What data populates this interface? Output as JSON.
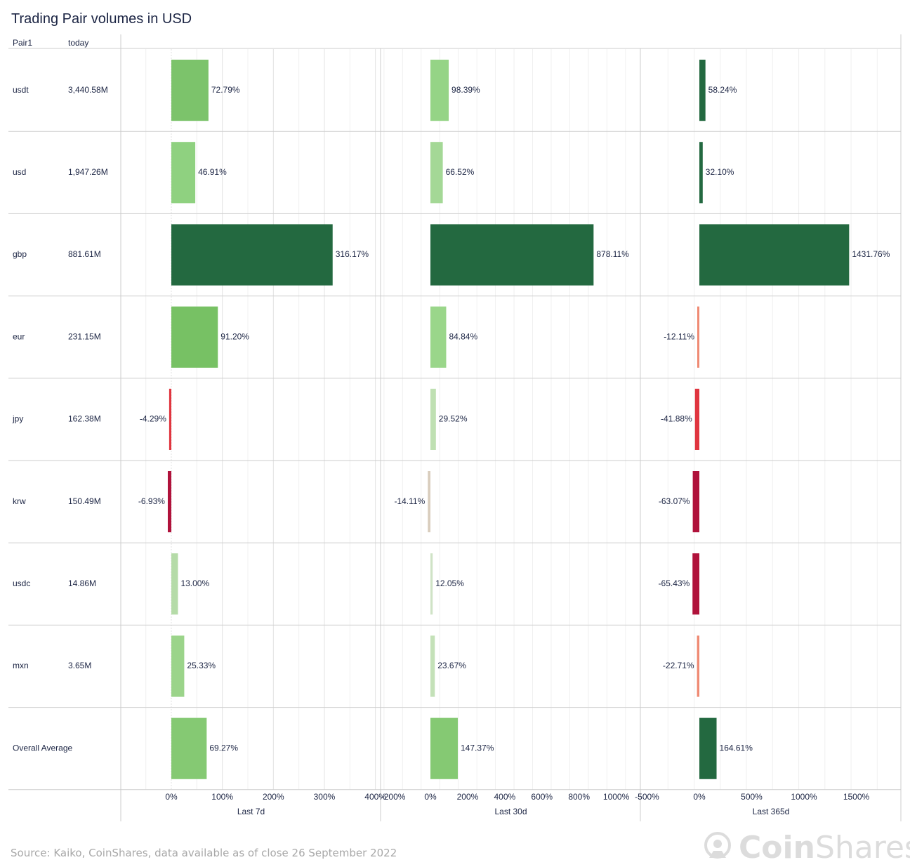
{
  "title": "Trading Pair volumes in USD",
  "source": "Source: Kaiko, CoinShares, data available as of close 26 September 2022",
  "logo": {
    "bold": "Coin",
    "rest": "Shares"
  },
  "colors": {
    "dark_green": "#236940",
    "mid_green": "#7cc36b",
    "light_green": "#a4d896",
    "pale_green": "#cfe3c6",
    "beige": "#d9cdbd",
    "light_red": "#ef8a73",
    "red": "#e0353f",
    "dark_red": "#b0123b",
    "text": "#1c2544",
    "grid": "#e5e5e5",
    "border": "#cccccc"
  },
  "chart_data": {
    "type": "bar",
    "title": "Trading Pair volumes in USD",
    "columns": [
      "Pair1",
      "today"
    ],
    "pairs": [
      "usdt",
      "usd",
      "gbp",
      "eur",
      "jpy",
      "krw",
      "usdc",
      "mxn",
      "Overall Average"
    ],
    "today": [
      "3,440.58M",
      "1,947.26M",
      "881.61M",
      "231.15M",
      "162.38M",
      "150.49M",
      "14.86M",
      "3.65M",
      ""
    ],
    "panels": [
      {
        "name": "Last 7d",
        "xlim": [
          -100,
          410
        ],
        "ticks": [
          0,
          100,
          200,
          300,
          400
        ],
        "tick_labels": [
          "0%",
          "100%",
          "200%",
          "300%",
          "400%"
        ],
        "values": [
          72.79,
          46.91,
          316.17,
          91.2,
          -4.29,
          -6.93,
          13.0,
          25.33,
          69.27
        ],
        "labels": [
          "72.79%",
          "46.91%",
          "316.17%",
          "91.20%",
          "-4.29%",
          "-6.93%",
          "13.00%",
          "25.33%",
          "69.27%"
        ],
        "colors": [
          "#7cc36b",
          "#8fd180",
          "#236940",
          "#77c164",
          "#e0353f",
          "#b0123b",
          "#b5dba8",
          "#9bd48a",
          "#85c973"
        ]
      },
      {
        "name": "Last 30d",
        "xlim": [
          -250,
          1150
        ],
        "ticks": [
          -200,
          0,
          200,
          400,
          600,
          800,
          1000
        ],
        "tick_labels": [
          "-200%",
          "0%",
          "200%",
          "400%",
          "600%",
          "800%",
          "1000%"
        ],
        "values": [
          98.39,
          66.52,
          878.11,
          84.84,
          29.52,
          -14.11,
          12.05,
          23.67,
          147.37
        ],
        "labels": [
          "98.39%",
          "66.52%",
          "878.11%",
          "84.84%",
          "29.52%",
          "-14.11%",
          "12.05%",
          "23.67%",
          "147.37%"
        ],
        "colors": [
          "#95d486",
          "#a4d896",
          "#236940",
          "#9ad68a",
          "#bfe0b2",
          "#d9cdbd",
          "#cfe3c6",
          "#c4e1b8",
          "#85c973"
        ]
      },
      {
        "name": "Last 365d",
        "xlim": [
          -550,
          1900
        ],
        "ticks": [
          -500,
          0,
          500,
          1000,
          1500
        ],
        "tick_labels": [
          "-500%",
          "0%",
          "500%",
          "1000%",
          "1500%"
        ],
        "values": [
          58.24,
          32.1,
          1431.76,
          -12.11,
          -41.88,
          -63.07,
          -65.43,
          -22.71,
          164.61
        ],
        "labels": [
          "58.24%",
          "32.10%",
          "1431.76%",
          "-12.11%",
          "-41.88%",
          "-63.07%",
          "-65.43%",
          "-22.71%",
          "164.61%"
        ],
        "colors": [
          "#236940",
          "#236940",
          "#236940",
          "#ef8a73",
          "#e0353f",
          "#b0123b",
          "#b0123b",
          "#ef8a73",
          "#236940"
        ]
      }
    ]
  }
}
